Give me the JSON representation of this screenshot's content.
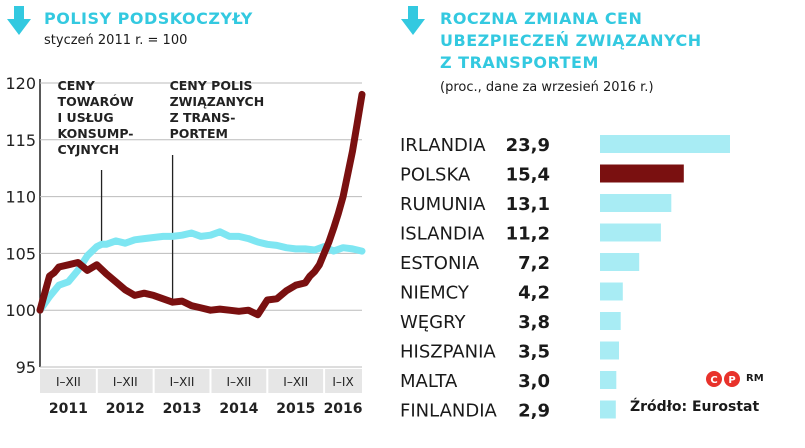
{
  "left": {
    "title": "POLISY PODSKOCZYŁY",
    "subtitle": "styczeń 2011 r. = 100",
    "annotation_consumer": [
      "CENY",
      "TOWARÓW",
      "I USŁUG",
      "KONSUMP-",
      "CYJNYCH"
    ],
    "annotation_insurance": [
      "CENY POLIS",
      "ZWIĄZANYCH",
      "Z TRANS-",
      "PORTEM"
    ]
  },
  "right": {
    "title_lines": [
      "ROCZNA ZMIANA CEN",
      "UBEZPIECZEŃ ZWIĄZANYCH",
      "Z TRANSPORTEM"
    ],
    "subtitle": "(proc., dane za wrzesień 2016 r.)"
  },
  "source": "Źródło: Eurostat",
  "logo_text": "RM",
  "colors": {
    "accent": "#33c9e0",
    "bar": "#a8ecf4",
    "highlight": "#7a1010",
    "series_consumer": "#7ee6f2",
    "series_insurance": "#7a1010"
  },
  "chart_data": [
    {
      "type": "line",
      "title": "POLISY PODSKOCZYŁY",
      "subtitle": "styczeń 2011 r. = 100",
      "ylim": [
        95,
        120
      ],
      "yticks": [
        95,
        100,
        105,
        110,
        115,
        120
      ],
      "xlim": [
        0,
        68
      ],
      "period_labels": [
        "I–XII",
        "I–XII",
        "I–XII",
        "I–XII",
        "I–XII",
        "I–IX"
      ],
      "year_labels": [
        "2011",
        "2012",
        "2013",
        "2014",
        "2015",
        "2016"
      ],
      "series": [
        {
          "key": "consumer",
          "x": [
            0,
            2,
            4,
            6,
            8,
            10,
            12,
            13,
            14,
            16,
            18,
            20,
            22,
            24,
            26,
            28,
            30,
            32,
            34,
            36,
            38,
            40,
            42,
            44,
            46,
            48,
            50,
            52,
            54,
            56,
            58,
            60,
            62,
            64,
            66,
            68
          ],
          "y": [
            100,
            101.2,
            102.2,
            102.5,
            103.5,
            104.8,
            105.6,
            105.8,
            105.8,
            106.1,
            105.9,
            106.2,
            106.3,
            106.4,
            106.5,
            106.5,
            106.6,
            106.8,
            106.5,
            106.6,
            106.9,
            106.5,
            106.5,
            106.3,
            106.0,
            105.8,
            105.7,
            105.5,
            105.4,
            105.4,
            105.3,
            105.6,
            105.2,
            105.5,
            105.4,
            105.2
          ]
        },
        {
          "key": "insurance",
          "x": [
            0,
            1,
            2,
            3,
            4,
            6,
            8,
            10,
            12,
            14,
            16,
            18,
            20,
            22,
            24,
            26,
            28,
            30,
            32,
            34,
            36,
            38,
            40,
            42,
            44,
            46,
            48,
            50,
            52,
            54,
            56,
            57,
            58,
            59,
            60,
            61,
            62,
            63,
            64,
            65,
            66,
            67,
            68
          ],
          "y": [
            100,
            101.5,
            103.0,
            103.3,
            103.8,
            104.0,
            104.2,
            103.5,
            104.0,
            103.2,
            102.5,
            101.8,
            101.3,
            101.5,
            101.3,
            101.0,
            100.7,
            100.8,
            100.4,
            100.2,
            100.0,
            100.1,
            100.0,
            99.9,
            100.0,
            99.6,
            100.9,
            101.0,
            101.7,
            102.2,
            102.4,
            103.0,
            103.4,
            104.0,
            105.0,
            106.0,
            107.2,
            108.5,
            110.0,
            112.0,
            114.0,
            116.5,
            119.0
          ]
        }
      ]
    },
    {
      "type": "bar",
      "title": "ROCZNA ZMIANA CEN UBEZPIECZEŃ ZWIĄZANYCH Z TRANSPORTEM",
      "subtitle": "(proc., dane za wrzesień 2016 r.)",
      "categories": [
        "IRLANDIA",
        "POLSKA",
        "RUMUNIA",
        "ISLANDIA",
        "ESTONIA",
        "NIEMCY",
        "WĘGRY",
        "HISZPANIA",
        "MALTA",
        "FINLANDIA"
      ],
      "value_labels": [
        "23,9",
        "15,4",
        "13,1",
        "11,2",
        "7,2",
        "4,2",
        "3,8",
        "3,5",
        "3,0",
        "2,9"
      ],
      "values": [
        23.9,
        15.4,
        13.1,
        11.2,
        7.2,
        4.2,
        3.8,
        3.5,
        3.0,
        2.9
      ],
      "highlight": "POLSKA"
    }
  ]
}
